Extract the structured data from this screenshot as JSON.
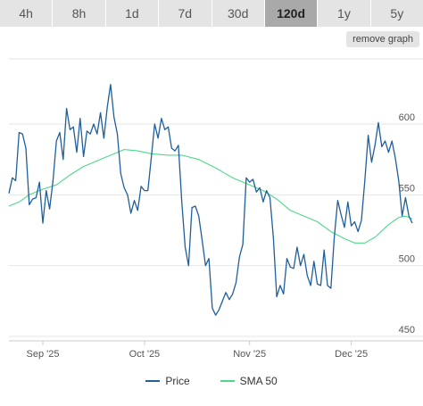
{
  "tabs": [
    {
      "label": "4h",
      "active": false
    },
    {
      "label": "8h",
      "active": false
    },
    {
      "label": "1d",
      "active": false
    },
    {
      "label": "7d",
      "active": false
    },
    {
      "label": "30d",
      "active": false
    },
    {
      "label": "120d",
      "active": true
    },
    {
      "label": "1y",
      "active": false
    },
    {
      "label": "5y",
      "active": false
    }
  ],
  "remove_graph_label": "remove graph",
  "chart_data": {
    "type": "line",
    "title": "",
    "xlabel": "",
    "ylabel": "",
    "y_ticks": [
      450,
      500,
      550,
      600
    ],
    "ylim": [
      450,
      600
    ],
    "x_range": [
      "2025-08-22",
      "2025-12-19"
    ],
    "x_ticks": [
      {
        "label": "Sep '25",
        "date": "2025-09-01"
      },
      {
        "label": "Oct '25",
        "date": "2025-10-01"
      },
      {
        "label": "Nov '25",
        "date": "2025-11-01"
      },
      {
        "label": "Dec '25",
        "date": "2025-12-01"
      }
    ],
    "grid": "horizontal",
    "legend_position": "bottom",
    "series": [
      {
        "name": "Price",
        "color": "#1f5f9a",
        "points": [
          [
            "2025-08-22",
            551
          ],
          [
            "2025-08-23",
            562
          ],
          [
            "2025-08-24",
            560
          ],
          [
            "2025-08-25",
            594
          ],
          [
            "2025-08-26",
            593
          ],
          [
            "2025-08-27",
            583
          ],
          [
            "2025-08-28",
            543
          ],
          [
            "2025-08-29",
            547
          ],
          [
            "2025-08-30",
            548
          ],
          [
            "2025-08-31",
            559
          ],
          [
            "2025-09-01",
            530
          ],
          [
            "2025-09-02",
            553
          ],
          [
            "2025-09-03",
            540
          ],
          [
            "2025-09-04",
            560
          ],
          [
            "2025-09-05",
            588
          ],
          [
            "2025-09-06",
            594
          ],
          [
            "2025-09-07",
            575
          ],
          [
            "2025-09-08",
            611
          ],
          [
            "2025-09-09",
            596
          ],
          [
            "2025-09-10",
            598
          ],
          [
            "2025-09-11",
            580
          ],
          [
            "2025-09-12",
            604
          ],
          [
            "2025-09-13",
            577
          ],
          [
            "2025-09-14",
            595
          ],
          [
            "2025-09-15",
            593
          ],
          [
            "2025-09-16",
            600
          ],
          [
            "2025-09-17",
            593
          ],
          [
            "2025-09-18",
            608
          ],
          [
            "2025-09-19",
            590
          ],
          [
            "2025-09-20",
            612
          ],
          [
            "2025-09-21",
            628
          ],
          [
            "2025-09-22",
            605
          ],
          [
            "2025-09-23",
            593
          ],
          [
            "2025-09-24",
            565
          ],
          [
            "2025-09-25",
            555
          ],
          [
            "2025-09-26",
            550
          ],
          [
            "2025-09-27",
            537
          ],
          [
            "2025-09-28",
            546
          ],
          [
            "2025-09-29",
            539
          ],
          [
            "2025-09-30",
            556
          ],
          [
            "2025-10-01",
            553
          ],
          [
            "2025-10-02",
            553
          ],
          [
            "2025-10-03",
            576
          ],
          [
            "2025-10-04",
            600
          ],
          [
            "2025-10-05",
            590
          ],
          [
            "2025-10-06",
            604
          ],
          [
            "2025-10-07",
            596
          ],
          [
            "2025-10-08",
            598
          ],
          [
            "2025-10-09",
            583
          ],
          [
            "2025-10-10",
            581
          ],
          [
            "2025-10-11",
            585
          ],
          [
            "2025-10-12",
            545
          ],
          [
            "2025-10-13",
            513
          ],
          [
            "2025-10-14",
            500
          ],
          [
            "2025-10-15",
            541
          ],
          [
            "2025-10-16",
            542
          ],
          [
            "2025-10-17",
            535
          ],
          [
            "2025-10-18",
            518
          ],
          [
            "2025-10-19",
            500
          ],
          [
            "2025-10-20",
            505
          ],
          [
            "2025-10-21",
            470
          ],
          [
            "2025-10-22",
            465
          ],
          [
            "2025-10-23",
            469
          ],
          [
            "2025-10-24",
            475
          ],
          [
            "2025-10-25",
            481
          ],
          [
            "2025-10-26",
            476
          ],
          [
            "2025-10-27",
            480
          ],
          [
            "2025-10-28",
            488
          ],
          [
            "2025-10-29",
            506
          ],
          [
            "2025-10-30",
            515
          ],
          [
            "2025-10-31",
            562
          ],
          [
            "2025-11-01",
            559
          ],
          [
            "2025-11-02",
            561
          ],
          [
            "2025-11-03",
            552
          ],
          [
            "2025-11-04",
            555
          ],
          [
            "2025-11-05",
            545
          ],
          [
            "2025-11-06",
            553
          ],
          [
            "2025-11-07",
            548
          ],
          [
            "2025-11-08",
            520
          ],
          [
            "2025-11-09",
            478
          ],
          [
            "2025-11-10",
            486
          ],
          [
            "2025-11-11",
            480
          ],
          [
            "2025-11-12",
            505
          ],
          [
            "2025-11-13",
            499
          ],
          [
            "2025-11-14",
            498
          ],
          [
            "2025-11-15",
            513
          ],
          [
            "2025-11-16",
            500
          ],
          [
            "2025-11-17",
            508
          ],
          [
            "2025-11-18",
            493
          ],
          [
            "2025-11-19",
            486
          ],
          [
            "2025-11-20",
            503
          ],
          [
            "2025-11-21",
            487
          ],
          [
            "2025-11-22",
            486
          ],
          [
            "2025-11-23",
            511
          ],
          [
            "2025-11-24",
            486
          ],
          [
            "2025-11-25",
            484
          ],
          [
            "2025-11-26",
            520
          ],
          [
            "2025-11-27",
            546
          ],
          [
            "2025-11-28",
            536
          ],
          [
            "2025-11-29",
            527
          ],
          [
            "2025-11-30",
            545
          ],
          [
            "2025-12-01",
            528
          ],
          [
            "2025-12-02",
            531
          ],
          [
            "2025-12-03",
            524
          ],
          [
            "2025-12-04",
            532
          ],
          [
            "2025-12-05",
            560
          ],
          [
            "2025-12-06",
            592
          ],
          [
            "2025-12-07",
            573
          ],
          [
            "2025-12-08",
            585
          ],
          [
            "2025-12-09",
            601
          ],
          [
            "2025-12-10",
            584
          ],
          [
            "2025-12-11",
            588
          ],
          [
            "2025-12-12",
            580
          ],
          [
            "2025-12-13",
            588
          ],
          [
            "2025-12-14",
            576
          ],
          [
            "2025-12-15",
            560
          ],
          [
            "2025-12-16",
            535
          ],
          [
            "2025-12-17",
            548
          ],
          [
            "2025-12-18",
            535
          ],
          [
            "2025-12-19",
            530
          ]
        ]
      },
      {
        "name": "SMA 50",
        "color": "#4cd98a",
        "points": [
          [
            "2025-08-22",
            542
          ],
          [
            "2025-08-25",
            545
          ],
          [
            "2025-08-28",
            550
          ],
          [
            "2025-09-01",
            554
          ],
          [
            "2025-09-05",
            557
          ],
          [
            "2025-09-09",
            564
          ],
          [
            "2025-09-13",
            570
          ],
          [
            "2025-09-17",
            574
          ],
          [
            "2025-09-21",
            578
          ],
          [
            "2025-09-25",
            582
          ],
          [
            "2025-09-29",
            581
          ],
          [
            "2025-10-03",
            579
          ],
          [
            "2025-10-08",
            578
          ],
          [
            "2025-10-12",
            578
          ],
          [
            "2025-10-17",
            575
          ],
          [
            "2025-10-22",
            569
          ],
          [
            "2025-10-27",
            562
          ],
          [
            "2025-11-01",
            557
          ],
          [
            "2025-11-05",
            553
          ],
          [
            "2025-11-09",
            547
          ],
          [
            "2025-11-13",
            539
          ],
          [
            "2025-11-17",
            535
          ],
          [
            "2025-11-21",
            531
          ],
          [
            "2025-11-25",
            524
          ],
          [
            "2025-11-29",
            519
          ],
          [
            "2025-12-02",
            516
          ],
          [
            "2025-12-05",
            516
          ],
          [
            "2025-12-08",
            520
          ],
          [
            "2025-12-12",
            529
          ],
          [
            "2025-12-15",
            534
          ],
          [
            "2025-12-17",
            535
          ],
          [
            "2025-12-19",
            533
          ]
        ]
      }
    ]
  }
}
